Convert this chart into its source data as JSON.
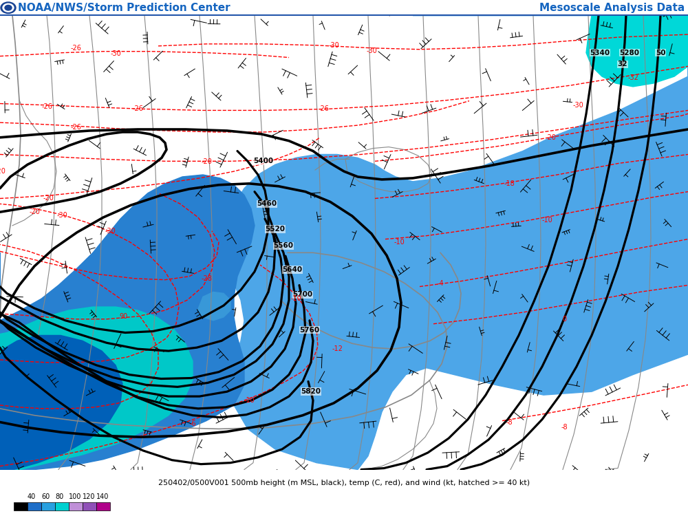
{
  "title_left": "NOAA/NWS/Storm Prediction Center",
  "title_right": "Mesoscale Analysis Data",
  "bottom_label": "250402/0500V001 500mb height (m MSL, black), temp (C, red), and wind (kt, hatched >= 40 kt)",
  "colorbar_values": [
    40,
    60,
    80,
    100,
    120,
    140
  ],
  "colorbar_colors": [
    "#1e6ec8",
    "#28a0e0",
    "#00d0d0",
    "#c090d8",
    "#9050b8",
    "#b0008a"
  ],
  "background_color": "#ffffff",
  "fig_width": 10.0,
  "fig_height": 7.5,
  "dpi": 100,
  "header_blue": "#1565c0"
}
